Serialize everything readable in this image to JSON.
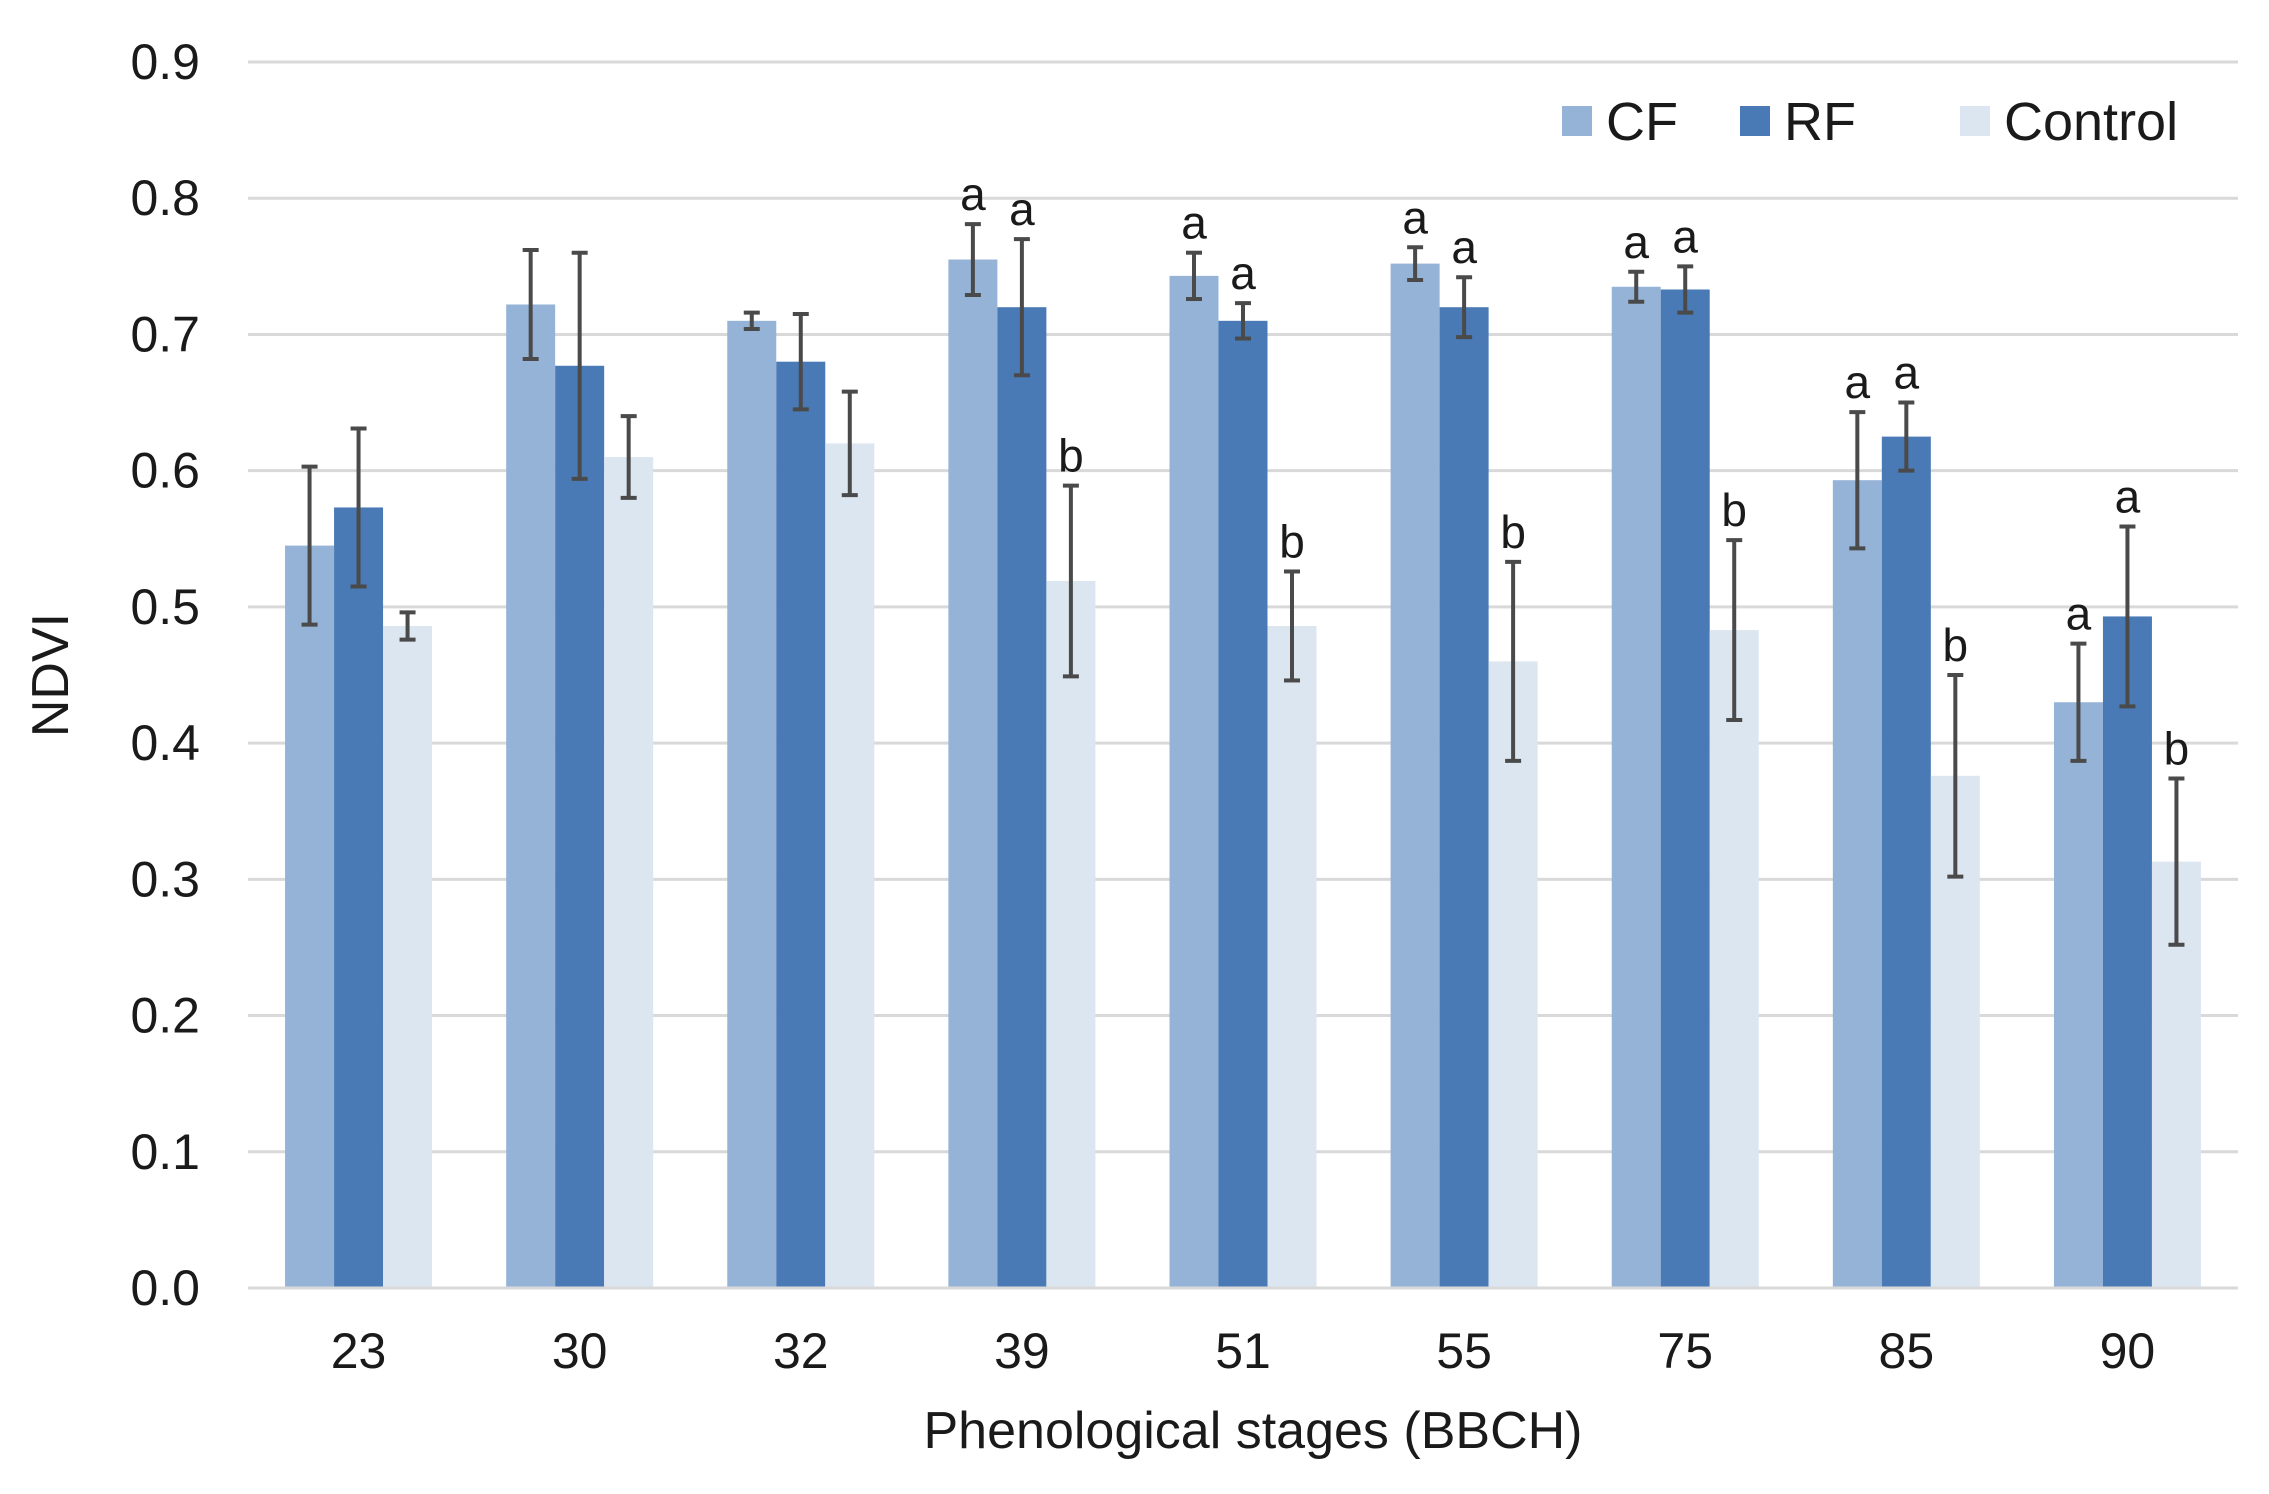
{
  "chart_data": {
    "type": "bar",
    "title": "",
    "xlabel": "Phenological stages (BBCH)",
    "ylabel": "NDVI",
    "ylim": [
      0,
      0.9
    ],
    "yticks": [
      "0.0",
      "0.1",
      "0.2",
      "0.3",
      "0.4",
      "0.5",
      "0.6",
      "0.7",
      "0.8",
      "0.9"
    ],
    "grid": true,
    "legend_position": "top-right",
    "categories": [
      "23",
      "30",
      "32",
      "39",
      "51",
      "55",
      "75",
      "85",
      "90"
    ],
    "series": [
      {
        "name": "CF",
        "color": "#95b3d7",
        "values": [
          0.545,
          0.722,
          0.71,
          0.755,
          0.743,
          0.752,
          0.735,
          0.593,
          0.43
        ],
        "errors": [
          0.058,
          0.04,
          0.006,
          0.026,
          0.017,
          0.012,
          0.011,
          0.05,
          0.043
        ],
        "labels": [
          "",
          "",
          "",
          "a",
          "a",
          "a",
          "a",
          "a",
          "a"
        ]
      },
      {
        "name": "RF",
        "color": "#4a7ab5",
        "values": [
          0.573,
          0.677,
          0.68,
          0.72,
          0.71,
          0.72,
          0.733,
          0.625,
          0.493
        ],
        "errors": [
          0.058,
          0.083,
          0.035,
          0.05,
          0.013,
          0.022,
          0.017,
          0.025,
          0.066
        ],
        "labels": [
          "",
          "",
          "",
          "a",
          "a",
          "a",
          "a",
          "a",
          "a"
        ]
      },
      {
        "name": "Control",
        "color": "#dce6f1",
        "values": [
          0.486,
          0.61,
          0.62,
          0.519,
          0.486,
          0.46,
          0.483,
          0.376,
          0.313
        ],
        "errors": [
          0.01,
          0.03,
          0.038,
          0.07,
          0.04,
          0.073,
          0.066,
          0.074,
          0.061
        ],
        "labels": [
          "",
          "",
          "",
          "b",
          "b",
          "b",
          "b",
          "b",
          "b"
        ]
      }
    ]
  }
}
